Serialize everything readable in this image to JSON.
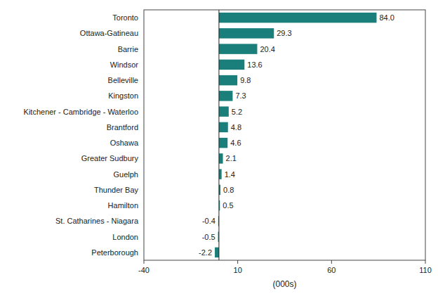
{
  "chart_data": {
    "type": "bar",
    "orientation": "horizontal",
    "categories": [
      "Peterborough",
      "London",
      "St. Catharines - Niagara",
      "Hamilton",
      "Thunder Bay",
      "Guelph",
      "Greater Sudbury",
      "Oshawa",
      "Brantford",
      "Kitchener - Cambridge - Waterloo",
      "Kingston",
      "Belleville",
      "Windsor",
      "Barrie",
      "Ottawa-Gatineau",
      "Toronto"
    ],
    "values": [
      -2.2,
      -0.5,
      -0.4,
      0.5,
      0.8,
      1.4,
      2.1,
      4.6,
      4.8,
      5.2,
      7.3,
      9.8,
      13.6,
      20.4,
      29.3,
      84.0
    ],
    "value_labels": [
      "-2.2",
      "-0.5",
      "-0.4",
      "0.5",
      "0.8",
      "1.4",
      "2.1",
      "4.6",
      "4.8",
      "5.2",
      "7.3",
      "9.8",
      "13.6",
      "20.4",
      "29.3",
      "84.0"
    ],
    "color": "#1a7f7a",
    "xlabel": "(000s)",
    "xlim": [
      -40,
      110
    ],
    "xticks": [
      -40,
      10,
      60,
      110
    ],
    "grid": false,
    "data_labels": true
  }
}
